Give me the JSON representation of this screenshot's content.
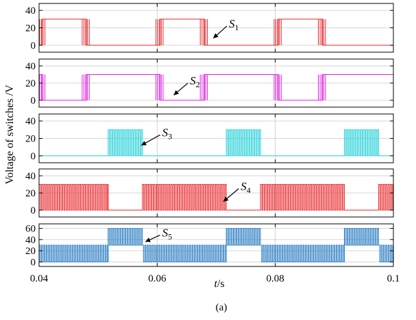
{
  "chart_data": {
    "type": "line",
    "subtitle": "(a)",
    "ylabel": "Voltage of switches /V",
    "xlabel": {
      "italic": "t",
      "unit": "/s"
    },
    "xlim": [
      0.04,
      0.1
    ],
    "x_ticks": [
      0.04,
      0.06,
      0.08,
      0.1
    ],
    "x_tick_labels": [
      "0.04",
      "0.06",
      "0.08",
      "0.1"
    ],
    "grid": true,
    "panels": [
      {
        "label_main": "S",
        "label_sub": "1",
        "color": "#e8262a",
        "ylim": [
          -8,
          48
        ],
        "y_ticks": [
          0,
          20,
          40
        ],
        "y_tick_labels": [
          "0",
          "20",
          "40"
        ],
        "low": 0,
        "high": 30,
        "on_intervals": [
          [
            0.0405,
            0.048
          ],
          [
            0.0605,
            0.068
          ],
          [
            0.0805,
            0.088
          ]
        ],
        "pwm_edges": [
          0.0405,
          0.048,
          0.0605,
          0.068,
          0.0805,
          0.088
        ],
        "annotation": {
          "arrow_from": [
            0.0718,
            22
          ],
          "arrow_to": [
            0.0695,
            8
          ]
        }
      },
      {
        "label_main": "S",
        "label_sub": "2",
        "color": "#e020e0",
        "ylim": [
          -8,
          48
        ],
        "y_ticks": [
          0,
          20,
          40
        ],
        "y_tick_labels": [
          "0",
          "20",
          "40"
        ],
        "low": 0,
        "high": 30,
        "on_intervals": [
          [
            0.04,
            0.0405
          ],
          [
            0.048,
            0.0605
          ],
          [
            0.068,
            0.0805
          ],
          [
            0.088,
            0.1
          ]
        ],
        "pwm_edges": [
          0.0405,
          0.048,
          0.0605,
          0.068,
          0.0805,
          0.088
        ],
        "annotation": {
          "arrow_from": [
            0.0652,
            20
          ],
          "arrow_to": [
            0.0628,
            6
          ]
        }
      },
      {
        "label_main": "S",
        "label_sub": "3",
        "color": "#1fd0d8",
        "ylim": [
          -8,
          48
        ],
        "y_ticks": [
          0,
          20,
          40
        ],
        "y_tick_labels": [
          "0",
          "20",
          "40"
        ],
        "low": 0,
        "high": 30,
        "on_intervals": [],
        "bursts": [
          [
            0.0517,
            0.0575
          ],
          [
            0.0717,
            0.0775
          ],
          [
            0.0917,
            0.0975
          ]
        ],
        "pwm_period": 0.0004,
        "annotation": {
          "arrow_from": [
            0.0605,
            24
          ],
          "arrow_to": [
            0.0573,
            12
          ]
        }
      },
      {
        "label_main": "S",
        "label_sub": "4",
        "color": "#e8262a",
        "ylim": [
          -8,
          48
        ],
        "y_ticks": [
          0,
          20,
          40
        ],
        "y_tick_labels": [
          "0",
          "20",
          "40"
        ],
        "low": 0,
        "high": 30,
        "on_intervals": [],
        "bursts": [
          [
            0.04,
            0.0517
          ],
          [
            0.0575,
            0.0717
          ],
          [
            0.0775,
            0.0917
          ],
          [
            0.0975,
            0.1
          ]
        ],
        "pwm_period": 0.0004,
        "annotation": {
          "arrow_from": [
            0.0738,
            25
          ],
          "arrow_to": [
            0.0712,
            10
          ]
        }
      },
      {
        "label_main": "S",
        "label_sub": "5",
        "color": "#2078c0",
        "ylim": [
          -8,
          68
        ],
        "y_ticks": [
          0,
          20,
          40,
          60
        ],
        "y_tick_labels": [
          "0",
          "20",
          "40",
          "60"
        ],
        "low": 0,
        "high": 30,
        "steps": [
          {
            "from": 0.04,
            "to": 0.0517,
            "base": 0,
            "top": 30
          },
          {
            "from": 0.0517,
            "to": 0.0575,
            "base": 30,
            "top": 60
          },
          {
            "from": 0.0575,
            "to": 0.0717,
            "base": 0,
            "top": 30
          },
          {
            "from": 0.0717,
            "to": 0.0775,
            "base": 30,
            "top": 60
          },
          {
            "from": 0.0775,
            "to": 0.0917,
            "base": 0,
            "top": 30
          },
          {
            "from": 0.0917,
            "to": 0.0975,
            "base": 30,
            "top": 60
          },
          {
            "from": 0.0975,
            "to": 0.1,
            "base": 0,
            "top": 30
          }
        ],
        "pwm_period": 0.0004,
        "annotation": {
          "arrow_from": [
            0.0605,
            48
          ],
          "arrow_to": [
            0.058,
            36
          ]
        }
      }
    ]
  }
}
